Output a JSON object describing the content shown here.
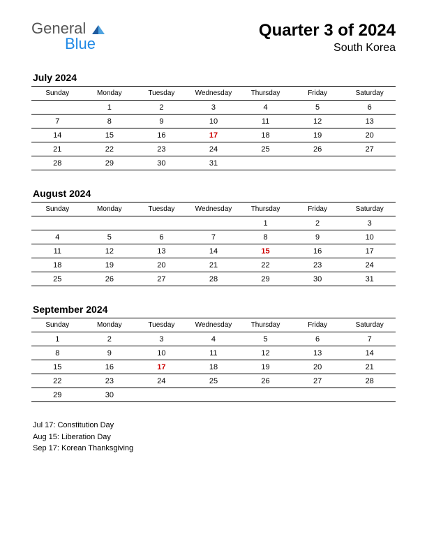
{
  "logo": {
    "part1": "General",
    "part2": "Blue"
  },
  "header": {
    "title": "Quarter 3 of 2024",
    "subtitle": "South Korea"
  },
  "weekdays": [
    "Sunday",
    "Monday",
    "Tuesday",
    "Wednesday",
    "Thursday",
    "Friday",
    "Saturday"
  ],
  "months": [
    {
      "title": "July 2024",
      "rows": [
        [
          "",
          "1",
          "2",
          "3",
          "4",
          "5",
          "6"
        ],
        [
          "7",
          "8",
          "9",
          "10",
          "11",
          "12",
          "13"
        ],
        [
          "14",
          "15",
          "16",
          "17",
          "18",
          "19",
          "20"
        ],
        [
          "21",
          "22",
          "23",
          "24",
          "25",
          "26",
          "27"
        ],
        [
          "28",
          "29",
          "30",
          "31",
          "",
          "",
          ""
        ]
      ],
      "holidays": [
        [
          2,
          3
        ]
      ]
    },
    {
      "title": "August 2024",
      "rows": [
        [
          "",
          "",
          "",
          "",
          "1",
          "2",
          "3"
        ],
        [
          "4",
          "5",
          "6",
          "7",
          "8",
          "9",
          "10"
        ],
        [
          "11",
          "12",
          "13",
          "14",
          "15",
          "16",
          "17"
        ],
        [
          "18",
          "19",
          "20",
          "21",
          "22",
          "23",
          "24"
        ],
        [
          "25",
          "26",
          "27",
          "28",
          "29",
          "30",
          "31"
        ]
      ],
      "holidays": [
        [
          2,
          4
        ]
      ]
    },
    {
      "title": "September 2024",
      "rows": [
        [
          "1",
          "2",
          "3",
          "4",
          "5",
          "6",
          "7"
        ],
        [
          "8",
          "9",
          "10",
          "11",
          "12",
          "13",
          "14"
        ],
        [
          "15",
          "16",
          "17",
          "18",
          "19",
          "20",
          "21"
        ],
        [
          "22",
          "23",
          "24",
          "25",
          "26",
          "27",
          "28"
        ],
        [
          "29",
          "30",
          "",
          "",
          "",
          "",
          ""
        ]
      ],
      "holidays": [
        [
          2,
          2
        ]
      ]
    }
  ],
  "holidays_list": [
    "Jul 17: Constitution Day",
    "Aug 15: Liberation Day",
    "Sep 17: Korean Thanksgiving"
  ],
  "colors": {
    "holiday": "#cc0000",
    "border": "#000000",
    "logo_general": "#555555",
    "logo_blue": "#1e88e5"
  },
  "typography": {
    "main_title_size": 24,
    "subtitle_size": 16,
    "month_title_size": 14,
    "header_cell_size": 10,
    "body_cell_size": 11,
    "holidays_size": 11
  }
}
